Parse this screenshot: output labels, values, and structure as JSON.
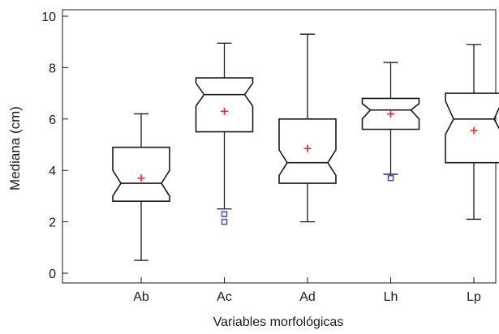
{
  "chart_data": {
    "type": "boxplot",
    "notched": true,
    "title": "",
    "xlabel": "Variables morfológicas",
    "ylabel": "Mediana (cm)",
    "ylim": [
      0,
      10
    ],
    "yticks": [
      0,
      2,
      4,
      6,
      8,
      10
    ],
    "grid": false,
    "categories": [
      "Ab",
      "Ac",
      "Ad",
      "Lh",
      "Lp"
    ],
    "boxes": [
      {
        "category": "Ab",
        "whisker_low": 0.5,
        "q1": 2.8,
        "median": 3.5,
        "q3": 4.9,
        "whisker_high": 6.2,
        "notch_low": 3.0,
        "notch_high": 4.0,
        "mean": 3.7,
        "outliers": []
      },
      {
        "category": "Ac",
        "whisker_low": 2.5,
        "q1": 5.5,
        "median": 6.95,
        "q3": 7.6,
        "whisker_high": 8.95,
        "notch_low": 6.5,
        "notch_high": 7.4,
        "mean": 6.3,
        "outliers": [
          2.0,
          2.3
        ]
      },
      {
        "category": "Ad",
        "whisker_low": 2.0,
        "q1": 3.5,
        "median": 4.3,
        "q3": 6.0,
        "whisker_high": 9.3,
        "notch_low": 3.8,
        "notch_high": 4.8,
        "mean": 4.85,
        "outliers": []
      },
      {
        "category": "Lh",
        "whisker_low": 3.85,
        "q1": 5.6,
        "median": 6.35,
        "q3": 6.8,
        "whisker_high": 8.2,
        "notch_low": 6.0,
        "notch_high": 6.6,
        "mean": 6.2,
        "outliers": [
          3.7
        ]
      },
      {
        "category": "Lp",
        "whisker_low": 2.1,
        "q1": 4.3,
        "median": 6.0,
        "q3": 7.0,
        "whisker_high": 8.9,
        "notch_low": 5.4,
        "notch_high": 6.7,
        "mean": 5.55,
        "outliers": []
      }
    ],
    "colors": {
      "box": "#1a1a1a",
      "mean_marker": "#ff2020",
      "outlier_marker": "#3a4ec8"
    }
  }
}
